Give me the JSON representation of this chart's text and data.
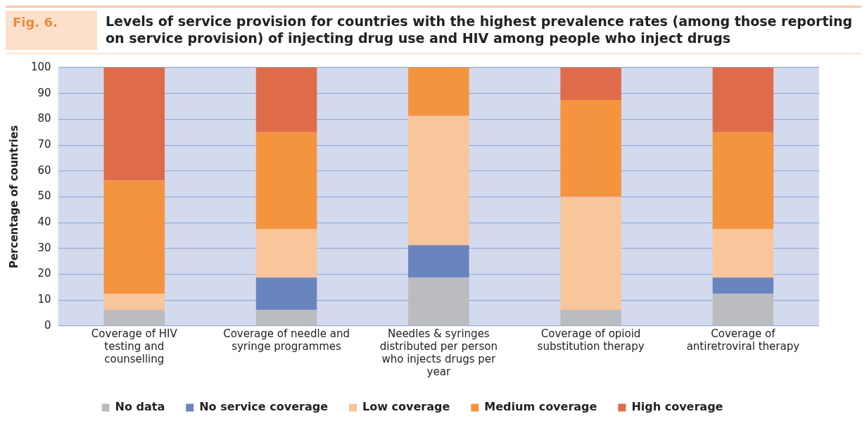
{
  "chart_data": {
    "type": "bar",
    "title": "Levels of service provision for countries with the highest prevalence rates (among those reporting on service provision) of injecting drug use and HIV among people who inject drugs",
    "annotations": [
      "Fig. 6."
    ],
    "ylabel": "Percentage of countries",
    "categories": [
      "Coverage of HIV testing and counselling",
      "Coverage of needle and syringe programmes",
      "Needles & syringes distributed per person who injects drugs per year",
      "Coverage of opioid substitution therapy",
      "Coverage of antiretroviral therapy"
    ],
    "stacked": true,
    "ylim": [
      0,
      100
    ],
    "yticks": [
      0,
      10,
      20,
      30,
      40,
      50,
      60,
      70,
      80,
      90,
      100
    ],
    "grid": "y",
    "legend": "bottom",
    "series": [
      {
        "name": "No data",
        "color": "#bbbcbf",
        "values": [
          6.25,
          6.25,
          18.75,
          6.25,
          12.5
        ]
      },
      {
        "name": "No service coverage",
        "color": "#6885c0",
        "values": [
          0,
          12.5,
          12.5,
          0,
          6.25
        ]
      },
      {
        "name": "Low coverage",
        "color": "#f9c59b",
        "values": [
          6.25,
          18.75,
          50,
          43.75,
          18.75
        ]
      },
      {
        "name": "Medium coverage",
        "color": "#f5943f",
        "values": [
          43.75,
          37.5,
          18.75,
          37.5,
          37.5
        ]
      },
      {
        "name": "High coverage",
        "color": "#de6c4a",
        "values": [
          43.75,
          25,
          0,
          12.5,
          25
        ]
      }
    ]
  }
}
